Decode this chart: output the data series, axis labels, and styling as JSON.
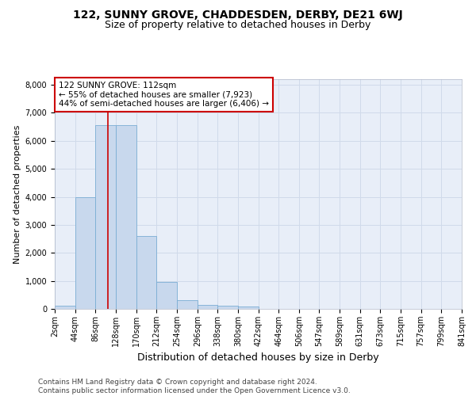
{
  "title1": "122, SUNNY GROVE, CHADDESDEN, DERBY, DE21 6WJ",
  "title2": "Size of property relative to detached houses in Derby",
  "xlabel": "Distribution of detached houses by size in Derby",
  "ylabel": "Number of detached properties",
  "bin_edges": [
    2,
    44,
    86,
    128,
    170,
    212,
    254,
    296,
    338,
    380,
    422,
    464,
    506,
    547,
    589,
    631,
    673,
    715,
    757,
    799,
    841
  ],
  "bar_heights": [
    100,
    4000,
    6550,
    6550,
    2600,
    950,
    320,
    130,
    100,
    80,
    10,
    5,
    2,
    1,
    0,
    0,
    0,
    0,
    0,
    0
  ],
  "bar_color": "#c8d8ed",
  "bar_edge_color": "#7aadd4",
  "vline_x": 112,
  "vline_color": "#cc0000",
  "ylim": [
    0,
    8200
  ],
  "yticks": [
    0,
    1000,
    2000,
    3000,
    4000,
    5000,
    6000,
    7000,
    8000
  ],
  "annotation_line1": "122 SUNNY GROVE: 112sqm",
  "annotation_line2": "← 55% of detached houses are smaller (7,923)",
  "annotation_line3": "44% of semi-detached houses are larger (6,406) →",
  "annotation_box_color": "#ffffff",
  "annotation_box_edge": "#cc0000",
  "grid_color": "#d0daea",
  "background_color": "#e8eef8",
  "footer_text": "Contains HM Land Registry data © Crown copyright and database right 2024.\nContains public sector information licensed under the Open Government Licence v3.0.",
  "title1_fontsize": 10,
  "title2_fontsize": 9,
  "xlabel_fontsize": 9,
  "ylabel_fontsize": 8,
  "annotation_fontsize": 7.5,
  "footer_fontsize": 6.5,
  "tick_fontsize": 7
}
